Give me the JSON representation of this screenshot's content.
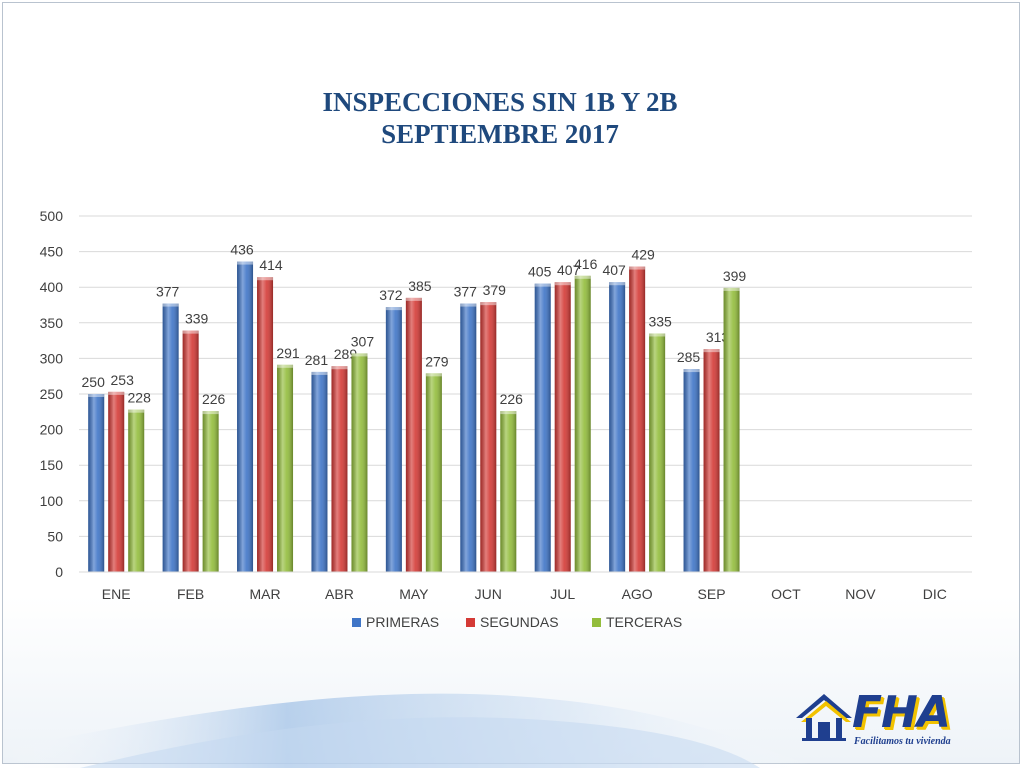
{
  "title_line1": "INSPECCIONES SIN 1B Y 2B",
  "title_line2": "SEPTIEMBRE 2017",
  "logo": {
    "text": "FHA",
    "slogan": "Facilitamos tu vivienda"
  },
  "colors": {
    "primeras": "#3f75c7",
    "segundas": "#d43a36",
    "terceras": "#93bd3c",
    "title": "#1f497d"
  },
  "chart_data": {
    "type": "bar",
    "categories": [
      "ENE",
      "FEB",
      "MAR",
      "ABR",
      "MAY",
      "JUN",
      "JUL",
      "AGO",
      "SEP",
      "OCT",
      "NOV",
      "DIC"
    ],
    "series": [
      {
        "name": "PRIMERAS",
        "values": [
          250,
          377,
          436,
          281,
          372,
          377,
          405,
          407,
          285,
          null,
          null,
          null
        ]
      },
      {
        "name": "SEGUNDAS",
        "values": [
          253,
          339,
          414,
          289,
          385,
          379,
          407,
          429,
          313,
          null,
          null,
          null
        ]
      },
      {
        "name": "TERCERAS",
        "values": [
          228,
          226,
          291,
          307,
          279,
          226,
          416,
          335,
          399,
          null,
          null,
          null
        ]
      }
    ],
    "ylim": [
      0,
      500
    ],
    "yticks": [
      0,
      50,
      100,
      150,
      200,
      250,
      300,
      350,
      400,
      450,
      500
    ],
    "grid": true,
    "legend": "bottom",
    "data_labels": true
  }
}
